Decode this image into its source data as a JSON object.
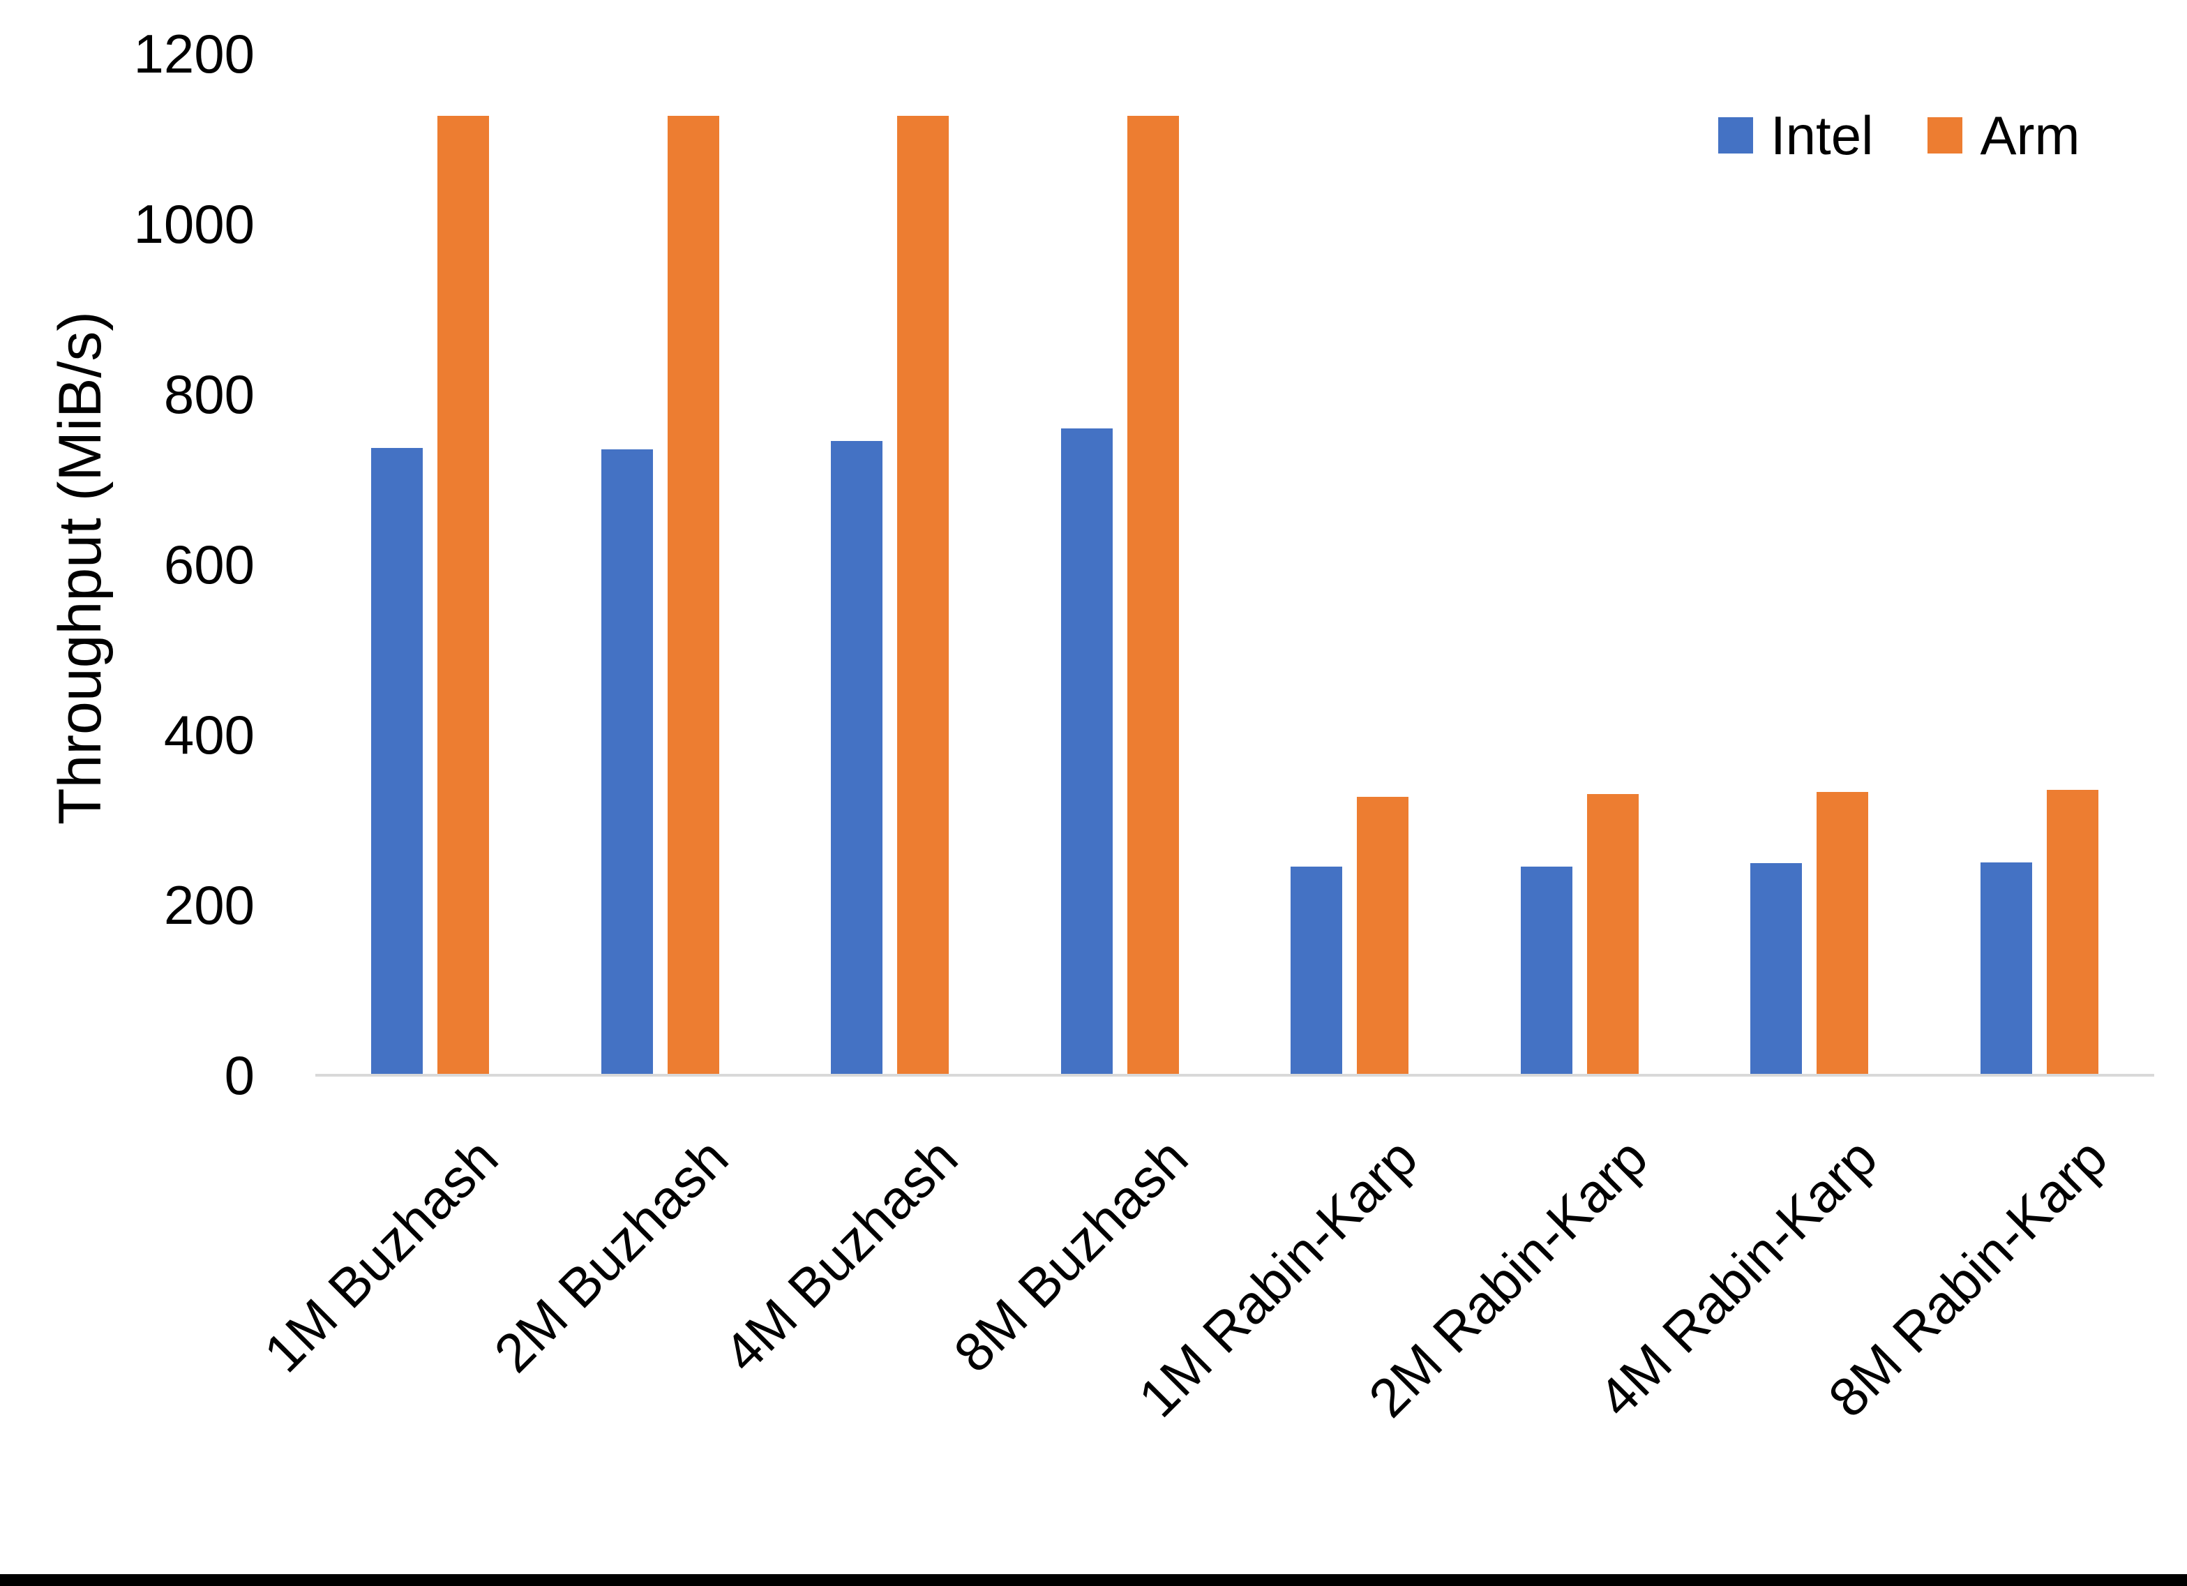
{
  "chart_data": {
    "type": "bar",
    "title": "",
    "xlabel": "",
    "ylabel": "Throughput (MiB/s)",
    "ylim": [
      0,
      1200
    ],
    "y_tick_step": 200,
    "grid": false,
    "legend_position": "top-right",
    "categories": [
      "1M Buzhash",
      "2M Buzhash",
      "4M Buzhash",
      "8M Buzhash",
      "1M Rabin-Karp",
      "2M Rabin-Karp",
      "4M Rabin-Karp",
      "8M Rabin-Karp"
    ],
    "series": [
      {
        "name": "Intel",
        "color": "#4472C4",
        "values": [
          737,
          735,
          745,
          760,
          245,
          245,
          249,
          250
        ]
      },
      {
        "name": "Arm",
        "color": "#ED7D31",
        "values": [
          1127,
          1127,
          1127,
          1127,
          327,
          330,
          333,
          335
        ]
      }
    ]
  },
  "colors": {
    "axis_line": "#D9D9D9",
    "text": "#000000",
    "bottom_border": "#000000"
  }
}
